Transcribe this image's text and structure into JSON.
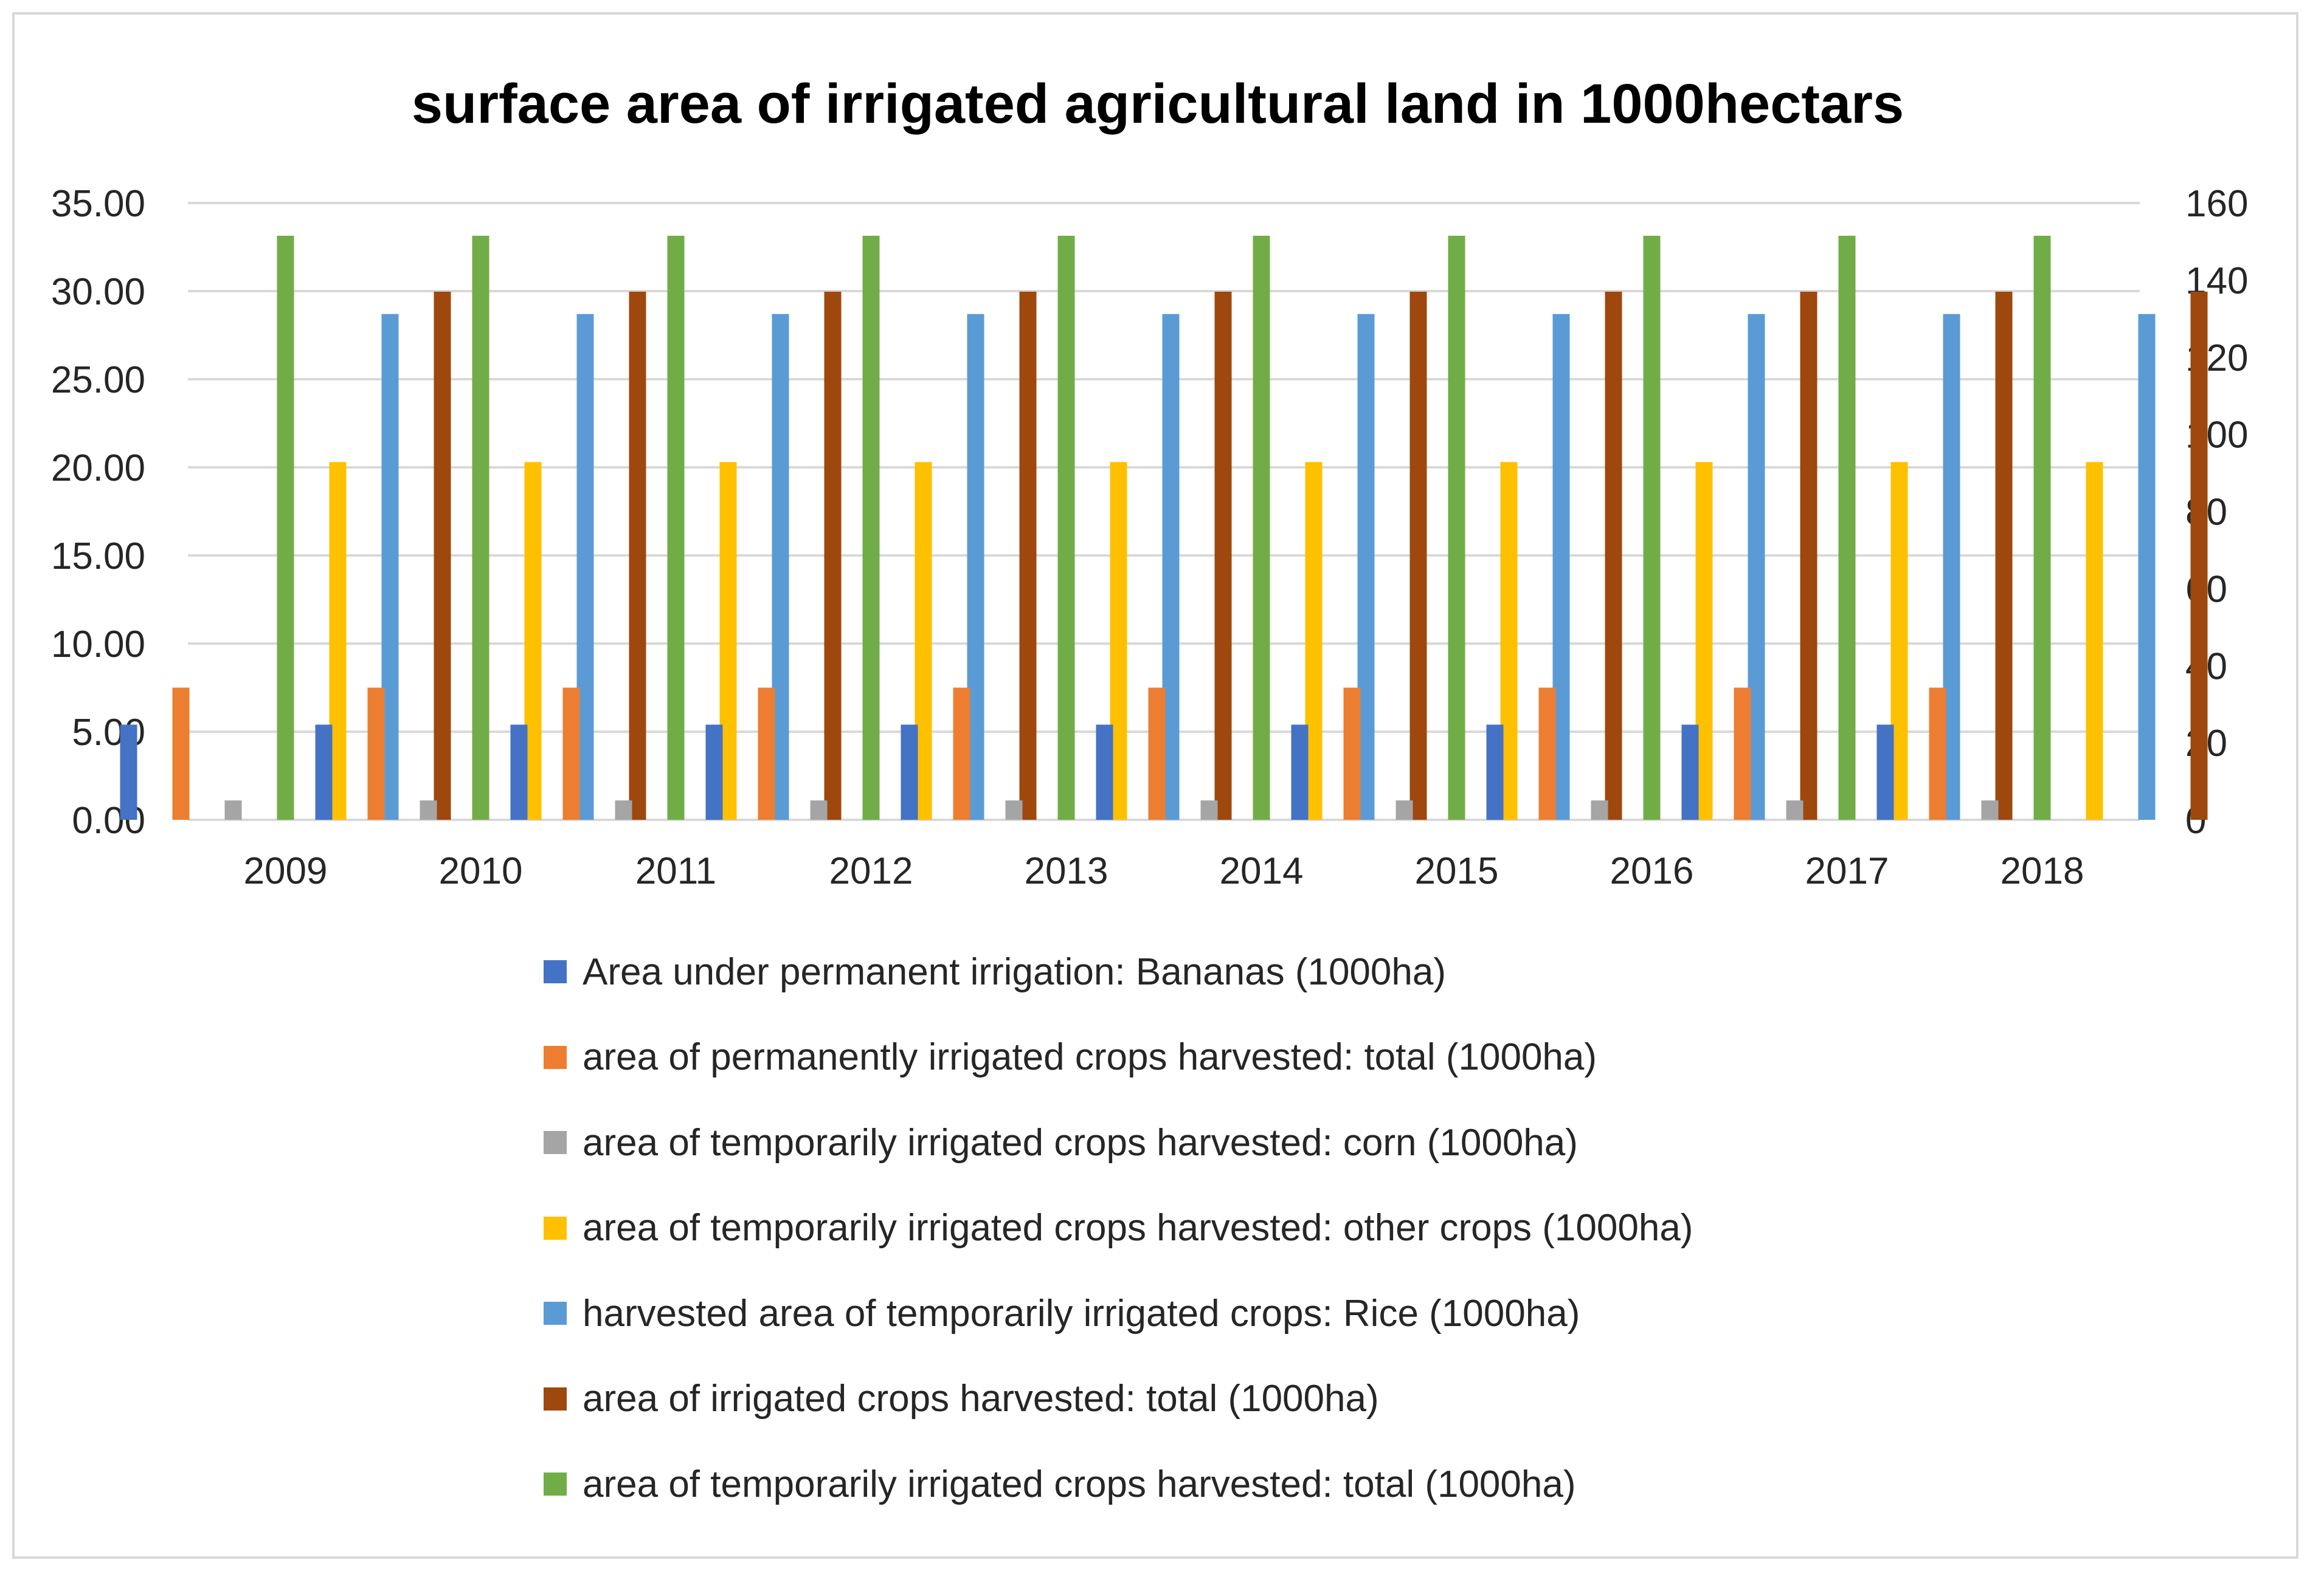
{
  "chart_data": {
    "type": "bar",
    "title": "surface area of irrigated agricultural land in 1000hectars",
    "categories": [
      "2009",
      "2010",
      "2011",
      "2012",
      "2013",
      "2014",
      "2015",
      "2016",
      "2017",
      "2018"
    ],
    "y_left": {
      "min": 0,
      "max": 35,
      "step": 5,
      "ticks": [
        "0.00",
        "5.00",
        "10.00",
        "15.00",
        "20.00",
        "25.00",
        "30.00",
        "35.00"
      ]
    },
    "y_right": {
      "min": 0,
      "max": 160,
      "step": 20,
      "ticks": [
        "0",
        "20",
        "40",
        "60",
        "80",
        "100",
        "120",
        "140",
        "160"
      ]
    },
    "grid": true,
    "legend_position": "bottom",
    "series": [
      {
        "name": "Area under permanent irrigation: Bananas (1000ha)",
        "color": "#4472c4",
        "axis": "left",
        "values": [
          5.4,
          5.4,
          5.4,
          5.4,
          5.4,
          5.4,
          5.4,
          5.4,
          5.4,
          5.4
        ]
      },
      {
        "name": "area of permanently irrigated crops harvested: total (1000ha)",
        "color": "#ed7d31",
        "axis": "left",
        "values": [
          7.5,
          7.5,
          7.5,
          7.5,
          7.5,
          7.5,
          7.5,
          7.5,
          7.5,
          7.5
        ]
      },
      {
        "name": "area of temporarily irrigated crops harvested: corn (1000ha)",
        "color": "#a5a5a5",
        "axis": "left",
        "values": [
          1.1,
          1.1,
          1.1,
          1.1,
          1.1,
          1.1,
          1.1,
          1.1,
          1.1,
          1.1
        ]
      },
      {
        "name": "area of temporarily irrigated crops harvested: other crops (1000ha)",
        "color": "#ffc000",
        "axis": "left",
        "values": [
          20.3,
          20.3,
          20.3,
          20.3,
          20.3,
          20.3,
          20.3,
          20.3,
          20.3,
          20.3
        ]
      },
      {
        "name": "harvested area of temporarily irrigated crops: Rice (1000ha)",
        "color": "#5b9bd5",
        "axis": "left",
        "values": [
          28.7,
          28.7,
          28.7,
          28.7,
          28.7,
          28.7,
          28.7,
          28.7,
          28.7,
          28.7
        ]
      },
      {
        "name": "area of irrigated crops harvested: total (1000ha)",
        "color": "#9e480e",
        "axis": "right",
        "values": [
          137,
          137,
          137,
          137,
          137,
          137,
          137,
          137,
          137,
          137
        ]
      },
      {
        "name": "area of temporarily irrigated crops harvested: total (1000ha)",
        "color": "#70ad47",
        "axis": "right",
        "values": [
          151.5,
          151.5,
          151.5,
          151.5,
          151.5,
          151.5,
          151.5,
          151.5,
          151.5,
          151.5
        ]
      }
    ],
    "legend_order": [
      0,
      1,
      2,
      3,
      4,
      5,
      6
    ]
  }
}
